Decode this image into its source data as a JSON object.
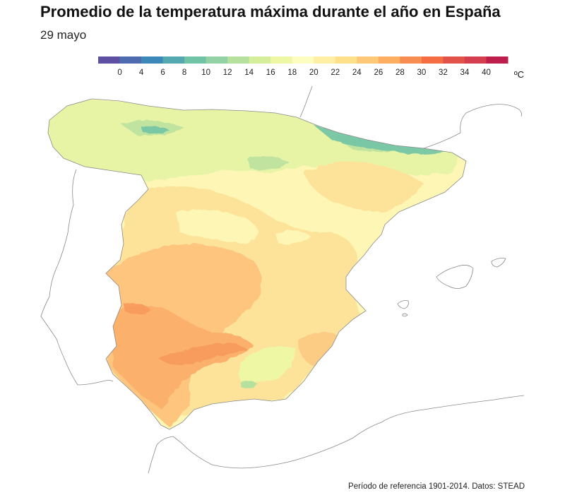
{
  "header": {
    "title": "Promedio de la temperatura máxima durante el año en España",
    "subtitle": "29 mayo"
  },
  "legend": {
    "unit": "ºC",
    "colors": [
      "#5e4fa2",
      "#4d6bae",
      "#3c88b9",
      "#54a9b0",
      "#71c3a5",
      "#93d2a4",
      "#b6e09d",
      "#d5ee9b",
      "#eef7a3",
      "#fdfdbf",
      "#feefa5",
      "#fee08b",
      "#fdc877",
      "#fdae61",
      "#f88d52",
      "#f46d43",
      "#e25249",
      "#d53e4f",
      "#be1e4b"
    ],
    "labels": [
      "0",
      "4",
      "6",
      "8",
      "10",
      "12",
      "14",
      "16",
      "18",
      "20",
      "22",
      "24",
      "26",
      "28",
      "30",
      "32",
      "34",
      "40"
    ]
  },
  "map": {
    "colors": {
      "cold": "#71c3a5",
      "cool": "#b6e09d",
      "mild": "#e7f4a6",
      "medium": "#fdf6b4",
      "warm": "#fde39a",
      "hot": "#fdc57e",
      "hotter": "#fbb06c",
      "hottest": "#f79a5c",
      "border": "#8a8a8a"
    }
  },
  "caption": "Período de referencia 1901-2014. Datos: STEAD"
}
